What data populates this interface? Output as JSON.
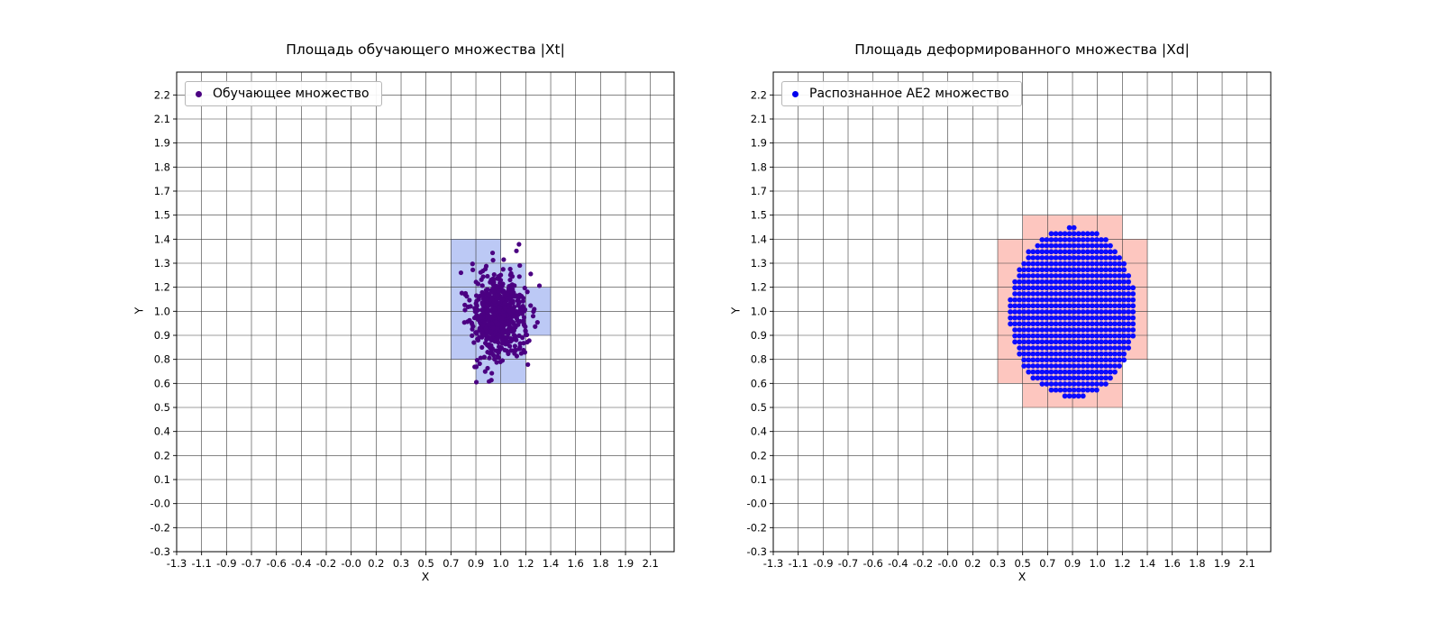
{
  "page": {
    "background": "#ffffff"
  },
  "chart_data": [
    {
      "type": "scatter",
      "title": "Площадь обучающего множества |Xt|",
      "xlabel": "X",
      "ylabel": "Y",
      "legend": {
        "label": "Обучающее множество",
        "position": "upper left",
        "marker_color": "#4B0082"
      },
      "grid": true,
      "x_tick_labels": [
        "-1.3",
        "-1.1",
        "-0.9",
        "-0.7",
        "-0.6",
        "-0.4",
        "-0.2",
        "-0.0",
        "0.2",
        "0.3",
        "0.5",
        "0.7",
        "0.9",
        "1.0",
        "1.2",
        "1.4",
        "1.6",
        "1.8",
        "1.9",
        "2.1"
      ],
      "y_tick_labels": [
        "-0.3",
        "-0.2",
        "-0.0",
        "0.1",
        "0.2",
        "0.4",
        "0.5",
        "0.6",
        "0.8",
        "0.9",
        "1.0",
        "1.2",
        "1.3",
        "1.4",
        "1.5",
        "1.7",
        "1.8",
        "1.9",
        "2.1",
        "2.2"
      ],
      "x_tick_span": [
        -1.3,
        2.1
      ],
      "y_tick_span": [
        -0.3,
        2.2
      ],
      "xlim": [
        -1.3,
        2.27
      ],
      "ylim": [
        -0.3,
        2.325
      ],
      "highlight_cells": {
        "color": "#5F7FE8",
        "opacity": 0.42,
        "rects": [
          {
            "x": 0.668,
            "y": 1.279,
            "w": 0.358,
            "h": 0.132
          },
          {
            "x": 0.668,
            "y": 1.147,
            "w": 0.537,
            "h": 0.132
          },
          {
            "x": 0.668,
            "y": 0.884,
            "w": 0.716,
            "h": 0.263
          },
          {
            "x": 0.668,
            "y": 0.753,
            "w": 0.537,
            "h": 0.131
          },
          {
            "x": 0.847,
            "y": 0.621,
            "w": 0.358,
            "h": 0.132
          }
        ]
      },
      "series": [
        {
          "name": "Обучающее множество",
          "kind": "gaussian_cluster",
          "center": [
            1.0,
            1.0
          ],
          "std": [
            0.1,
            0.115
          ],
          "count": 650,
          "seed": 12345,
          "color": "#4B0082",
          "marker_radius": 2.6
        }
      ]
    },
    {
      "type": "scatter",
      "title": "Площадь деформированного множества |Xd|",
      "xlabel": "X",
      "ylabel": "Y",
      "legend": {
        "label": "Распознанное AE2 множество",
        "position": "upper left",
        "marker_color": "#0000EE"
      },
      "grid": true,
      "x_tick_labels": [
        "-1.3",
        "-1.1",
        "-0.9",
        "-0.7",
        "-0.6",
        "-0.4",
        "-0.2",
        "-0.0",
        "0.2",
        "0.3",
        "0.5",
        "0.7",
        "0.9",
        "1.0",
        "1.2",
        "1.4",
        "1.6",
        "1.8",
        "1.9",
        "2.1"
      ],
      "y_tick_labels": [
        "-0.3",
        "-0.2",
        "-0.0",
        "0.1",
        "0.2",
        "0.4",
        "0.5",
        "0.6",
        "0.8",
        "0.9",
        "1.0",
        "1.2",
        "1.3",
        "1.4",
        "1.5",
        "1.7",
        "1.8",
        "1.9",
        "2.1",
        "2.2"
      ],
      "x_tick_span": [
        -1.3,
        2.1
      ],
      "y_tick_span": [
        -0.3,
        2.2
      ],
      "xlim": [
        -1.3,
        2.27
      ],
      "ylim": [
        -0.3,
        2.325
      ],
      "highlight_cells": {
        "color": "#FA8072",
        "opacity": 0.45,
        "rects": [
          {
            "x": 0.489,
            "y": 1.411,
            "w": 0.716,
            "h": 0.131
          },
          {
            "x": 0.311,
            "y": 0.753,
            "w": 1.073,
            "h": 0.658
          },
          {
            "x": 0.311,
            "y": 0.621,
            "w": 0.894,
            "h": 0.132
          },
          {
            "x": 0.489,
            "y": 0.489,
            "w": 0.716,
            "h": 0.132
          }
        ]
      },
      "series": [
        {
          "name": "Распознанное AE2 множество",
          "kind": "lattice_ellipse",
          "center": [
            0.85,
            1.01
          ],
          "rx": 0.455,
          "ry": 0.465,
          "origin": [
            0.4015,
            0.552
          ],
          "step": [
            0.0326,
            0.0329
          ],
          "color": "#0B0BFF",
          "marker_radius": 2.9
        }
      ]
    }
  ]
}
